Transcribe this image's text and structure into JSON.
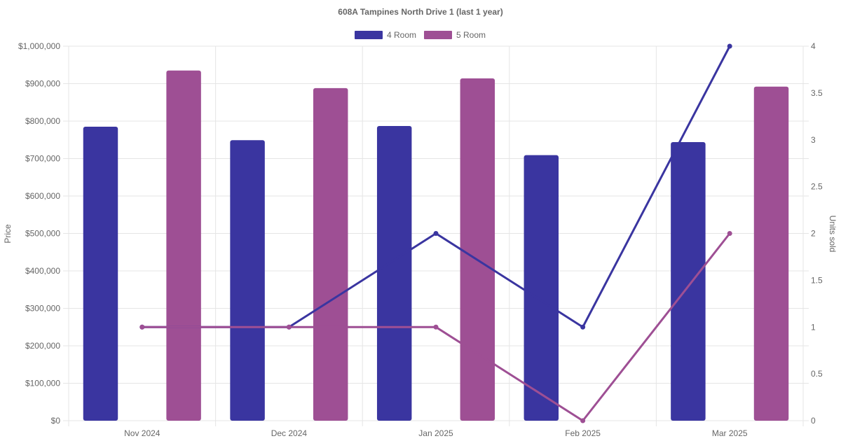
{
  "chart_data": {
    "type": "bar",
    "title": "608A Tampines North Drive 1 (last 1 year)",
    "categories": [
      "Nov 2024",
      "Dec 2024",
      "Jan 2025",
      "Feb 2025",
      "Mar 2025"
    ],
    "ylabel": "Price",
    "y2label": "Units sold",
    "ylim": [
      0,
      1000000
    ],
    "y2lim": [
      0,
      4
    ],
    "y_ticks": [
      "$0",
      "$100,000",
      "$200,000",
      "$300,000",
      "$400,000",
      "$500,000",
      "$600,000",
      "$700,000",
      "$800,000",
      "$900,000",
      "$1,000,000"
    ],
    "y2_ticks": [
      "0",
      "0.5",
      "1",
      "1.5",
      "2",
      "2.5",
      "3",
      "3.5",
      "4"
    ],
    "legend_position": "top-center",
    "grid": true,
    "series": [
      {
        "name": "4 Room",
        "color": "#3a35a0",
        "price_values": [
          785000,
          749000,
          787000,
          709000,
          744000
        ],
        "units_values": [
          1,
          1,
          2,
          1,
          4
        ]
      },
      {
        "name": "5 Room",
        "color": "#9e4f94",
        "price_values": [
          935000,
          888000,
          914000,
          null,
          892000
        ],
        "units_values": [
          1,
          1,
          1,
          0,
          2
        ]
      }
    ]
  }
}
